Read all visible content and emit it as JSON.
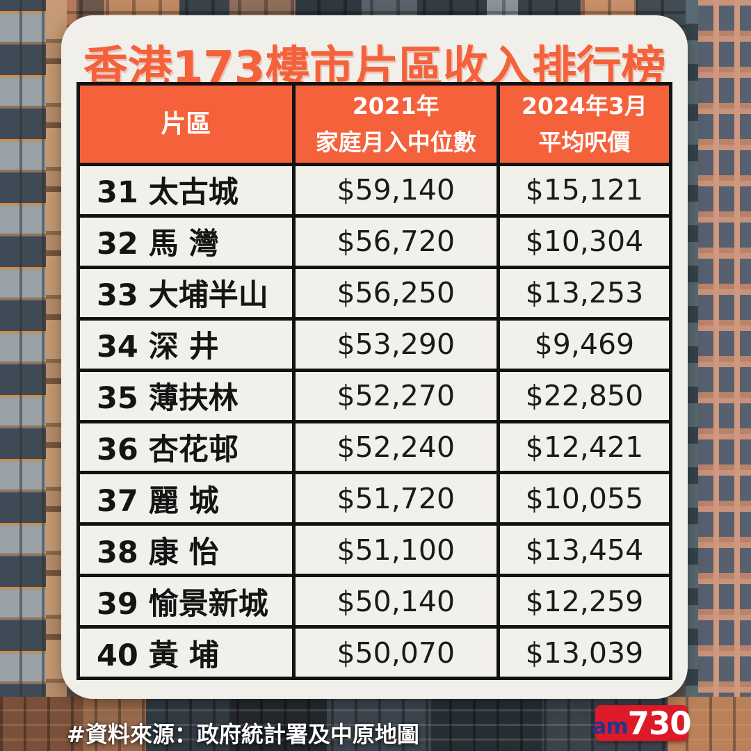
{
  "title": "香港173樓市片區收入排行榜",
  "table": {
    "header": {
      "district": "片區",
      "income_line1": "2021年",
      "income_line2": "家庭月入中位數",
      "price_line1": "2024年3月",
      "price_line2": "平均呎價"
    },
    "rows": [
      {
        "district": "31 太古城",
        "income": "$59,140",
        "price": "$15,121"
      },
      {
        "district": "32 馬 灣",
        "income": "$56,720",
        "price": "$10,304"
      },
      {
        "district": "33 大埔半山",
        "income": "$56,250",
        "price": "$13,253"
      },
      {
        "district": "34 深 井",
        "income": "$53,290",
        "price": "$9,469"
      },
      {
        "district": "35 薄扶林",
        "income": "$52,270",
        "price": "$22,850"
      },
      {
        "district": "36 杏花邨",
        "income": "$52,240",
        "price": "$12,421"
      },
      {
        "district": "37 麗 城",
        "income": "$51,720",
        "price": "$10,055"
      },
      {
        "district": "38 康 怡",
        "income": "$51,100",
        "price": "$13,454"
      },
      {
        "district": "39 愉景新城",
        "income": "$50,140",
        "price": "$12,259"
      },
      {
        "district": "40 黃 埔",
        "income": "$50,070",
        "price": "$13,039"
      }
    ]
  },
  "footer": {
    "source": "#資料來源：政府統計署及中原地圖"
  },
  "logo": {
    "am": "am",
    "num": "730"
  },
  "colors": {
    "accent_orange": "#F5613B",
    "card_bg": "#F1EFE9",
    "table_border": "#121212",
    "logo_red": "#DC1A28",
    "logo_blue": "#24368C"
  },
  "chart_data": {
    "type": "table",
    "title": "香港173樓市片區收入排行榜",
    "columns": [
      "片區",
      "2021年家庭月入中位數",
      "2024年3月平均呎價"
    ],
    "rows": [
      [
        "31 太古城",
        "$59,140",
        "$15,121"
      ],
      [
        "32 馬 灣",
        "$56,720",
        "$10,304"
      ],
      [
        "33 大埔半山",
        "$56,250",
        "$13,253"
      ],
      [
        "34 深 井",
        "$53,290",
        "$9,469"
      ],
      [
        "35 薄扶林",
        "$52,270",
        "$22,850"
      ],
      [
        "36 杏花邨",
        "$52,240",
        "$12,421"
      ],
      [
        "37 麗 城",
        "$51,720",
        "$10,055"
      ],
      [
        "38 康 怡",
        "$51,100",
        "$13,454"
      ],
      [
        "39 愉景新城",
        "$50,140",
        "$12,259"
      ],
      [
        "40 黃 埔",
        "$50,070",
        "$13,039"
      ]
    ],
    "notes": {
      "income_values": [
        59140,
        56720,
        56250,
        53290,
        52270,
        52240,
        51720,
        51100,
        50140,
        50070
      ],
      "price_per_sqft_values": [
        15121,
        10304,
        13253,
        9469,
        22850,
        12421,
        10055,
        13454,
        12259,
        13039
      ],
      "rank_range": [
        31,
        40
      ]
    }
  }
}
